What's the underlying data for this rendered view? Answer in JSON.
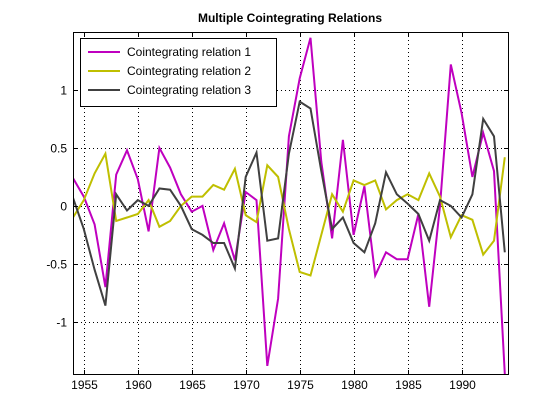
{
  "chart_data": {
    "type": "line",
    "title": "Multiple Cointegrating Relations",
    "xlabel": "",
    "ylabel": "",
    "xlim": [
      1954,
      1994.3
    ],
    "ylim": [
      -1.45,
      1.5
    ],
    "xticks": [
      1955,
      1960,
      1965,
      1970,
      1975,
      1980,
      1985,
      1990
    ],
    "xtick_labels": [
      "1955",
      "1960",
      "1965",
      "1970",
      "1975",
      "1980",
      "1985",
      "1990"
    ],
    "yticks": [
      1,
      0.5,
      0,
      -0.5,
      -1
    ],
    "ytick_labels": [
      "1",
      "0.5",
      "0",
      "-0.5",
      "-1"
    ],
    "grid": true,
    "legend_position": "top-left",
    "x": [
      1954,
      1955,
      1956,
      1957,
      1958,
      1959,
      1960,
      1961,
      1962,
      1963,
      1964,
      1965,
      1966,
      1967,
      1968,
      1969,
      1970,
      1971,
      1972,
      1973,
      1974,
      1975,
      1976,
      1977,
      1978,
      1979,
      1980,
      1981,
      1982,
      1983,
      1984,
      1985,
      1986,
      1987,
      1988,
      1989,
      1990,
      1991,
      1992,
      1993,
      1994
    ],
    "series": [
      {
        "name": "Cointegrating relation  1",
        "color": "#bf00bf",
        "values": [
          0.24,
          0.08,
          -0.16,
          -0.7,
          0.27,
          0.48,
          0.23,
          -0.22,
          0.5,
          0.33,
          0.1,
          -0.05,
          0.0,
          -0.38,
          -0.15,
          -0.47,
          0.12,
          0.05,
          -1.38,
          -0.8,
          0.6,
          1.1,
          1.45,
          0.38,
          -0.28,
          0.57,
          -0.25,
          0.17,
          -0.6,
          -0.4,
          -0.46,
          -0.46,
          -0.07,
          -0.87,
          0.0,
          1.22,
          0.8,
          0.25,
          0.63,
          0.3,
          -1.45
        ]
      },
      {
        "name": "Cointegrating relation  2",
        "color": "#bfbf00",
        "values": [
          -0.1,
          0.05,
          0.28,
          0.45,
          -0.13,
          -0.1,
          -0.07,
          0.05,
          -0.18,
          -0.13,
          0.0,
          0.08,
          0.08,
          0.18,
          0.14,
          0.32,
          -0.08,
          -0.14,
          0.35,
          0.25,
          -0.2,
          -0.57,
          -0.6,
          -0.25,
          0.1,
          -0.05,
          0.22,
          0.18,
          0.22,
          -0.03,
          0.05,
          0.1,
          0.05,
          0.28,
          0.08,
          -0.27,
          -0.08,
          -0.12,
          -0.42,
          -0.3,
          0.42
        ]
      },
      {
        "name": "Cointegrating relation  3",
        "color": "#404040",
        "values": [
          0.07,
          -0.2,
          -0.55,
          -0.86,
          0.1,
          -0.04,
          0.05,
          0.0,
          0.15,
          0.14,
          0.0,
          -0.2,
          -0.25,
          -0.32,
          -0.32,
          -0.54,
          0.25,
          0.46,
          -0.3,
          -0.28,
          0.45,
          0.9,
          0.84,
          0.3,
          -0.2,
          -0.1,
          -0.32,
          -0.4,
          -0.15,
          0.29,
          0.1,
          0.02,
          -0.07,
          -0.3,
          0.05,
          0.0,
          -0.1,
          0.1,
          0.75,
          0.6,
          -0.4
        ]
      }
    ]
  }
}
